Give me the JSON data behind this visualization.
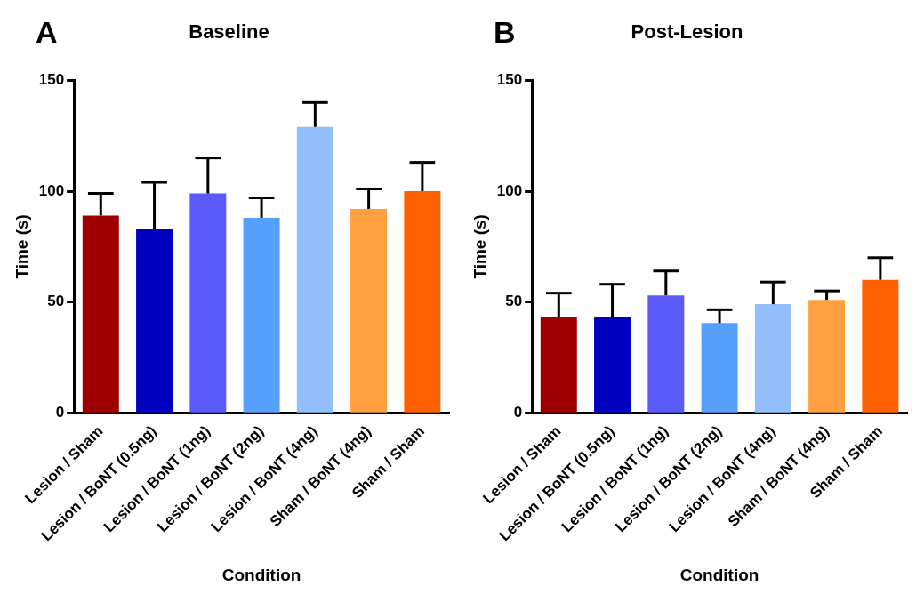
{
  "chart_data": [
    {
      "type": "bar",
      "title": "Baseline",
      "xlabel": "Condition",
      "ylabel": "Time (s)",
      "annotations": [
        "A"
      ],
      "categories": [
        "Lesion / Sham",
        "Lesion / BoNT (0.5ng)",
        "Lesion / BoNT (1ng)",
        "Lesion / BoNT (2ng)",
        "Lesion / BoNT (4ng)",
        "Sham / BoNT (4ng)",
        "Sham / Sham"
      ],
      "values": [
        89,
        83,
        99,
        88,
        129,
        92,
        100
      ],
      "errors": [
        [
          89,
          99
        ],
        [
          83,
          104
        ],
        [
          99,
          115
        ],
        [
          88,
          97
        ],
        [
          129,
          140
        ],
        [
          92,
          101
        ],
        [
          100,
          113
        ]
      ],
      "colors": [
        "#9e0000",
        "#0000c0",
        "#5a5af8",
        "#55a0fc",
        "#92bffa",
        "#ffa040",
        "#ff6000"
      ],
      "ylim": [
        0,
        150
      ],
      "yticks": [
        0,
        50,
        100,
        150
      ],
      "grid": false,
      "legend": false
    },
    {
      "type": "bar",
      "title": "Post-Lesion",
      "xlabel": "Condition",
      "ylabel": "Time (s)",
      "annotations": [
        "B"
      ],
      "categories": [
        "Lesion / Sham",
        "Lesion / BoNT (0.5ng)",
        "Lesion / BoNT (1ng)",
        "Lesion / BoNT (2ng)",
        "Lesion / BoNT (4ng)",
        "Sham / BoNT (4ng)",
        "Sham / Sham"
      ],
      "values": [
        43,
        43,
        53,
        40.5,
        49,
        51,
        60
      ],
      "errors": [
        [
          43,
          54
        ],
        [
          43,
          58
        ],
        [
          53,
          64
        ],
        [
          40.5,
          46.5
        ],
        [
          49,
          59
        ],
        [
          51,
          55
        ],
        [
          60,
          70
        ]
      ],
      "colors": [
        "#9e0000",
        "#0000c0",
        "#5a5af8",
        "#55a0fc",
        "#92bffa",
        "#ffa040",
        "#ff6000"
      ],
      "ylim": [
        0,
        150
      ],
      "yticks": [
        0,
        50,
        100,
        150
      ],
      "grid": false,
      "legend": false
    }
  ]
}
